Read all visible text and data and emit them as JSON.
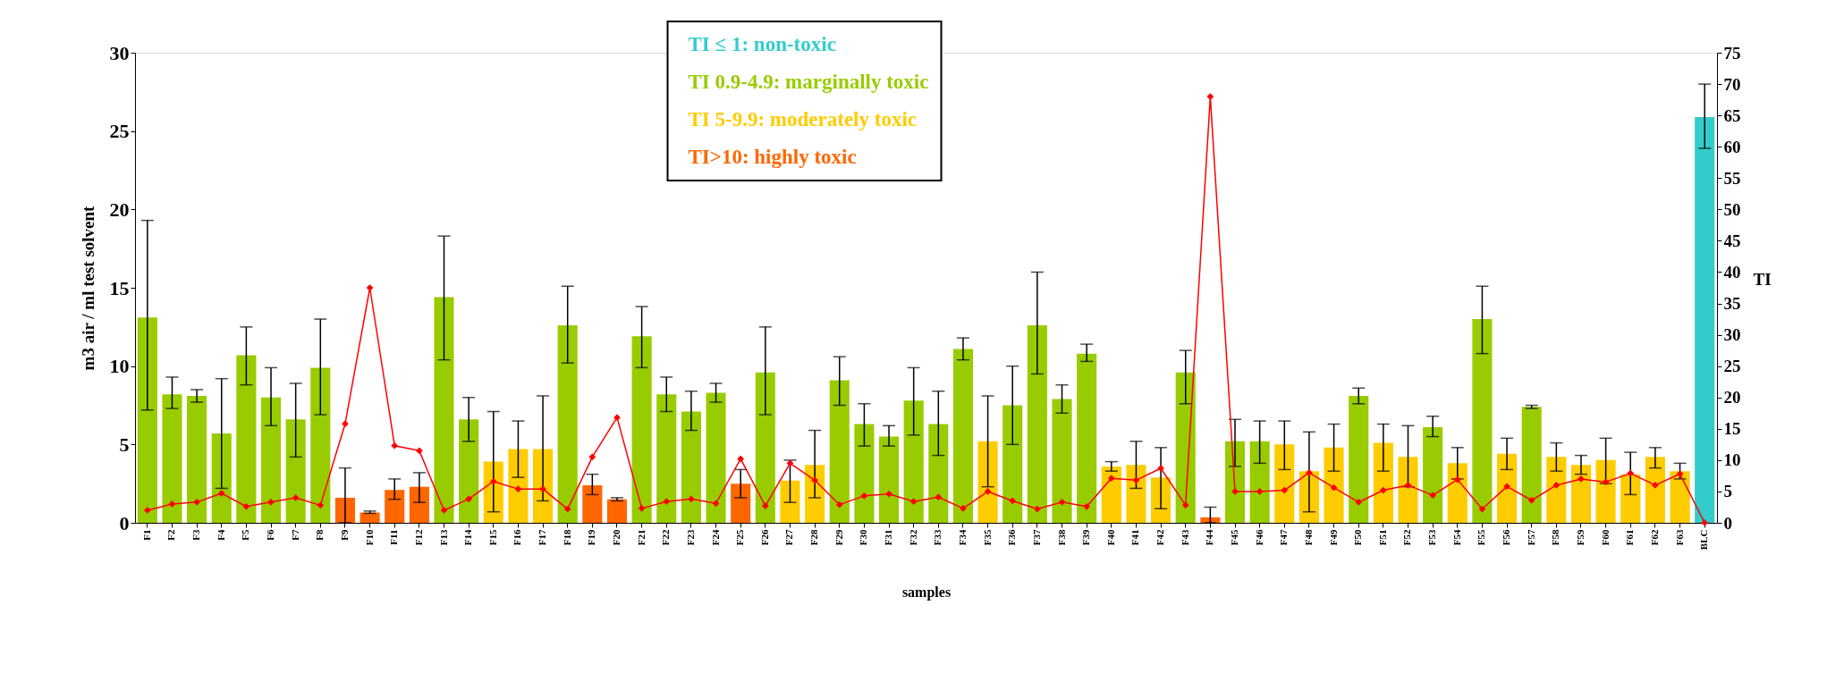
{
  "chart_data": {
    "type": "bar",
    "xlabel": "samples",
    "ylabel": "m3 air / ml test solvent",
    "y2label": "TI",
    "categories": [
      "F1",
      "F2",
      "F3",
      "F4",
      "F5",
      "F6",
      "F7",
      "F8",
      "F9",
      "F10",
      "F11",
      "F12",
      "F13",
      "F14",
      "F15",
      "F16",
      "F17",
      "F18",
      "F19",
      "F20",
      "F21",
      "F22",
      "F23",
      "F24",
      "F25",
      "F26",
      "F27",
      "F28",
      "F29",
      "F30",
      "F31",
      "F32",
      "F33",
      "F34",
      "F35",
      "F36",
      "F37",
      "F38",
      "F39",
      "F40",
      "F41",
      "F42",
      "F43",
      "F44",
      "F45",
      "F46",
      "F47",
      "F48",
      "F49",
      "F50",
      "F51",
      "F52",
      "F53",
      "F54",
      "F55",
      "F56",
      "F57",
      "F58",
      "F59",
      "F60",
      "F61",
      "F62",
      "F63",
      "BLC"
    ],
    "ylim": [
      0,
      30
    ],
    "yticks": [
      0,
      5,
      10,
      15,
      20,
      25,
      30
    ],
    "y2lim": [
      0,
      75
    ],
    "y2ticks": [
      0,
      5,
      10,
      15,
      20,
      25,
      30,
      35,
      40,
      45,
      50,
      55,
      60,
      65,
      70,
      75
    ],
    "grid": false,
    "legend": "top",
    "marker": "diamond",
    "series": [
      {
        "name": "TI ≤ 1: non-toxic",
        "color": "#33cccc",
        "values": [
          null,
          null,
          null,
          null,
          null,
          null,
          null,
          null,
          null,
          null,
          null,
          null,
          null,
          null,
          null,
          null,
          null,
          null,
          null,
          null,
          null,
          null,
          null,
          null,
          null,
          null,
          null,
          null,
          null,
          null,
          null,
          null,
          null,
          null,
          null,
          null,
          null,
          null,
          null,
          null,
          null,
          null,
          null,
          null,
          null,
          null,
          null,
          null,
          null,
          null,
          null,
          null,
          null,
          null,
          null,
          null,
          null,
          null,
          null,
          null,
          null,
          null,
          null,
          25.9
        ],
        "errors": [
          null,
          null,
          null,
          null,
          null,
          null,
          null,
          null,
          null,
          null,
          null,
          null,
          null,
          null,
          null,
          null,
          null,
          null,
          null,
          null,
          null,
          null,
          null,
          null,
          null,
          null,
          null,
          null,
          null,
          null,
          null,
          null,
          null,
          null,
          null,
          null,
          null,
          null,
          null,
          null,
          null,
          null,
          null,
          null,
          null,
          null,
          null,
          null,
          null,
          null,
          null,
          null,
          null,
          null,
          null,
          null,
          null,
          null,
          null,
          null,
          null,
          null,
          null,
          [
            23.9,
            28.0
          ]
        ]
      },
      {
        "name": "TI 0.9-4.9: marginally toxic",
        "color": "#99cc00",
        "values": [
          13.1,
          8.2,
          8.1,
          5.7,
          10.7,
          8.0,
          6.6,
          9.9,
          null,
          null,
          null,
          null,
          14.4,
          6.6,
          null,
          null,
          null,
          12.6,
          null,
          null,
          11.9,
          8.2,
          7.1,
          8.3,
          null,
          9.6,
          null,
          null,
          9.1,
          6.3,
          5.5,
          7.8,
          6.3,
          11.1,
          null,
          7.5,
          12.6,
          7.9,
          10.8,
          null,
          null,
          null,
          9.6,
          null,
          5.2,
          5.2,
          null,
          null,
          null,
          8.1,
          null,
          null,
          6.1,
          null,
          13.0,
          null,
          7.4,
          null,
          null,
          null,
          null,
          null,
          null,
          null
        ],
        "errors": [
          [
            7.2,
            19.3
          ],
          [
            7.3,
            9.3
          ],
          [
            7.7,
            8.5
          ],
          [
            2.2,
            9.2
          ],
          [
            8.8,
            12.5
          ],
          [
            6.2,
            9.9
          ],
          [
            4.2,
            8.9
          ],
          [
            6.9,
            13.0
          ],
          null,
          null,
          null,
          null,
          [
            10.4,
            18.3
          ],
          [
            5.2,
            8.0
          ],
          null,
          null,
          null,
          [
            10.2,
            15.1
          ],
          null,
          null,
          [
            9.9,
            13.8
          ],
          [
            7.1,
            9.3
          ],
          [
            5.9,
            8.4
          ],
          [
            7.7,
            8.9
          ],
          null,
          [
            6.9,
            12.5
          ],
          null,
          null,
          [
            7.5,
            10.6
          ],
          [
            4.9,
            7.6
          ],
          [
            4.9,
            6.2
          ],
          [
            5.6,
            9.9
          ],
          [
            4.3,
            8.4
          ],
          [
            10.4,
            11.8
          ],
          null,
          [
            5.0,
            10.0
          ],
          [
            9.5,
            16.0
          ],
          [
            7.0,
            8.8
          ],
          [
            10.3,
            11.4
          ],
          null,
          null,
          null,
          [
            7.6,
            11.0
          ],
          null,
          [
            3.6,
            6.6
          ],
          [
            3.8,
            6.5
          ],
          null,
          null,
          null,
          [
            7.6,
            8.6
          ],
          null,
          null,
          [
            5.5,
            6.8
          ],
          null,
          [
            10.8,
            15.1
          ],
          null,
          [
            7.3,
            7.5
          ],
          null,
          null,
          null,
          null,
          null,
          null,
          null
        ]
      },
      {
        "name": "TI 5-9.9: moderately toxic",
        "color": "#ffcc00",
        "values": [
          null,
          null,
          null,
          null,
          null,
          null,
          null,
          null,
          null,
          null,
          null,
          null,
          null,
          null,
          3.9,
          4.7,
          4.7,
          null,
          null,
          null,
          null,
          null,
          null,
          null,
          null,
          null,
          2.7,
          3.7,
          null,
          null,
          null,
          null,
          null,
          null,
          5.2,
          null,
          null,
          null,
          null,
          3.6,
          3.7,
          2.9,
          null,
          null,
          null,
          null,
          5.0,
          3.3,
          4.8,
          null,
          5.1,
          4.2,
          null,
          3.8,
          null,
          4.4,
          null,
          4.2,
          3.7,
          4.0,
          3.1,
          4.2,
          3.3,
          null
        ],
        "errors": [
          null,
          null,
          null,
          null,
          null,
          null,
          null,
          null,
          null,
          null,
          null,
          null,
          null,
          null,
          [
            0.7,
            7.1
          ],
          [
            2.9,
            6.5
          ],
          [
            1.4,
            8.1
          ],
          null,
          null,
          null,
          null,
          null,
          null,
          null,
          null,
          null,
          [
            1.3,
            4.0
          ],
          [
            1.6,
            5.9
          ],
          null,
          null,
          null,
          null,
          null,
          null,
          [
            2.3,
            8.1
          ],
          null,
          null,
          null,
          null,
          [
            3.3,
            3.9
          ],
          [
            2.2,
            5.2
          ],
          [
            0.9,
            4.8
          ],
          null,
          null,
          null,
          null,
          [
            3.4,
            6.5
          ],
          [
            0.7,
            5.8
          ],
          [
            3.3,
            6.3
          ],
          null,
          [
            3.3,
            6.3
          ],
          [
            2.3,
            6.2
          ],
          null,
          [
            2.8,
            4.8
          ],
          null,
          [
            3.4,
            5.4
          ],
          null,
          [
            3.3,
            5.1
          ],
          [
            3.1,
            4.3
          ],
          [
            2.5,
            5.4
          ],
          [
            1.8,
            4.5
          ],
          [
            3.5,
            4.8
          ],
          [
            2.8,
            3.8
          ],
          null
        ]
      },
      {
        "name": "TI>10: highly toxic",
        "color": "#ff6600",
        "values": [
          null,
          null,
          null,
          null,
          null,
          null,
          null,
          null,
          1.6,
          0.65,
          2.1,
          2.3,
          null,
          null,
          null,
          null,
          null,
          null,
          2.4,
          1.5,
          null,
          null,
          null,
          null,
          2.5,
          null,
          null,
          null,
          null,
          null,
          null,
          null,
          null,
          null,
          null,
          null,
          null,
          null,
          null,
          null,
          null,
          null,
          null,
          0.35,
          null,
          null,
          null,
          null,
          null,
          null,
          null,
          null,
          null,
          null,
          null,
          null,
          null,
          null,
          null,
          null,
          null,
          null,
          null,
          null
        ],
        "errors": [
          null,
          null,
          null,
          null,
          null,
          null,
          null,
          null,
          [
            0,
            3.5
          ],
          [
            0.6,
            0.75
          ],
          [
            1.5,
            2.8
          ],
          [
            1.3,
            3.2
          ],
          null,
          null,
          null,
          null,
          null,
          null,
          [
            1.8,
            3.1
          ],
          [
            1.4,
            1.6
          ],
          null,
          null,
          null,
          null,
          [
            1.6,
            3.4
          ],
          null,
          null,
          null,
          null,
          null,
          null,
          null,
          null,
          null,
          null,
          null,
          null,
          null,
          null,
          null,
          null,
          null,
          null,
          [
            0,
            1.0
          ],
          null,
          null,
          null,
          null,
          null,
          null,
          null,
          null,
          null,
          null,
          null,
          null,
          null,
          null,
          null,
          null,
          null,
          null,
          null,
          null
        ]
      },
      {
        "type": "line",
        "axis": "y2",
        "color": "#ff0000",
        "values": [
          2,
          3,
          3.3,
          4.7,
          2.6,
          3.3,
          4,
          2.8,
          15.8,
          37.5,
          12.3,
          11.5,
          2,
          3.8,
          6.6,
          5.4,
          5.4,
          2.2,
          10.5,
          16.8,
          2.3,
          3.4,
          3.8,
          3.1,
          10.2,
          2.7,
          9.5,
          6.8,
          2.9,
          4.3,
          4.6,
          3.4,
          4.1,
          2.3,
          5.0,
          3.5,
          2.2,
          3.3,
          2.6,
          7.1,
          6.8,
          8.7,
          2.8,
          68,
          5,
          5,
          5.2,
          8,
          5.6,
          3.3,
          5.2,
          6.0,
          4.4,
          6.9,
          2.2,
          5.8,
          3.6,
          6,
          7,
          6.5,
          7.9,
          6,
          7.8,
          0
        ]
      }
    ]
  }
}
